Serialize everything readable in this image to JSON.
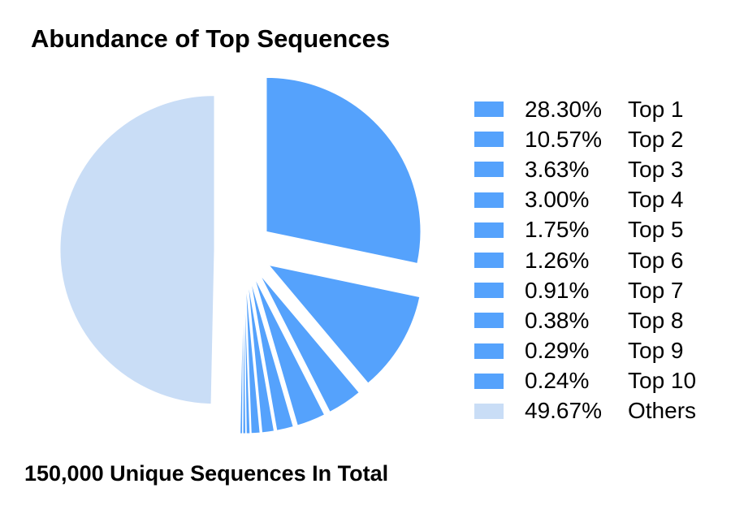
{
  "title": "Abundance of Top Sequences",
  "footer": "150,000 Unique Sequences In Total",
  "colors": {
    "top": "#55a2fc",
    "others": "#c9ddf6"
  },
  "chart_data": {
    "type": "pie",
    "title": "Abundance of Top Sequences",
    "slices": [
      {
        "label": "Top 1",
        "value": 28.3,
        "pct_label": "28.30%",
        "color": "#55a2fc",
        "exploded": true
      },
      {
        "label": "Top 2",
        "value": 10.57,
        "pct_label": "10.57%",
        "color": "#55a2fc",
        "exploded": true
      },
      {
        "label": "Top 3",
        "value": 3.63,
        "pct_label": "3.63%",
        "color": "#55a2fc",
        "exploded": true
      },
      {
        "label": "Top 4",
        "value": 3.0,
        "pct_label": "3.00%",
        "color": "#55a2fc",
        "exploded": true
      },
      {
        "label": "Top 5",
        "value": 1.75,
        "pct_label": "1.75%",
        "color": "#55a2fc",
        "exploded": true
      },
      {
        "label": "Top 6",
        "value": 1.26,
        "pct_label": "1.26%",
        "color": "#55a2fc",
        "exploded": true
      },
      {
        "label": "Top 7",
        "value": 0.91,
        "pct_label": "0.91%",
        "color": "#55a2fc",
        "exploded": true
      },
      {
        "label": "Top 8",
        "value": 0.38,
        "pct_label": "0.38%",
        "color": "#55a2fc",
        "exploded": true
      },
      {
        "label": "Top 9",
        "value": 0.29,
        "pct_label": "0.29%",
        "color": "#55a2fc",
        "exploded": true
      },
      {
        "label": "Top 10",
        "value": 0.24,
        "pct_label": "0.24%",
        "color": "#55a2fc",
        "exploded": true
      },
      {
        "label": "Others",
        "value": 49.67,
        "pct_label": "49.67%",
        "color": "#c9ddf6",
        "exploded": true
      }
    ],
    "legend_position": "right"
  }
}
